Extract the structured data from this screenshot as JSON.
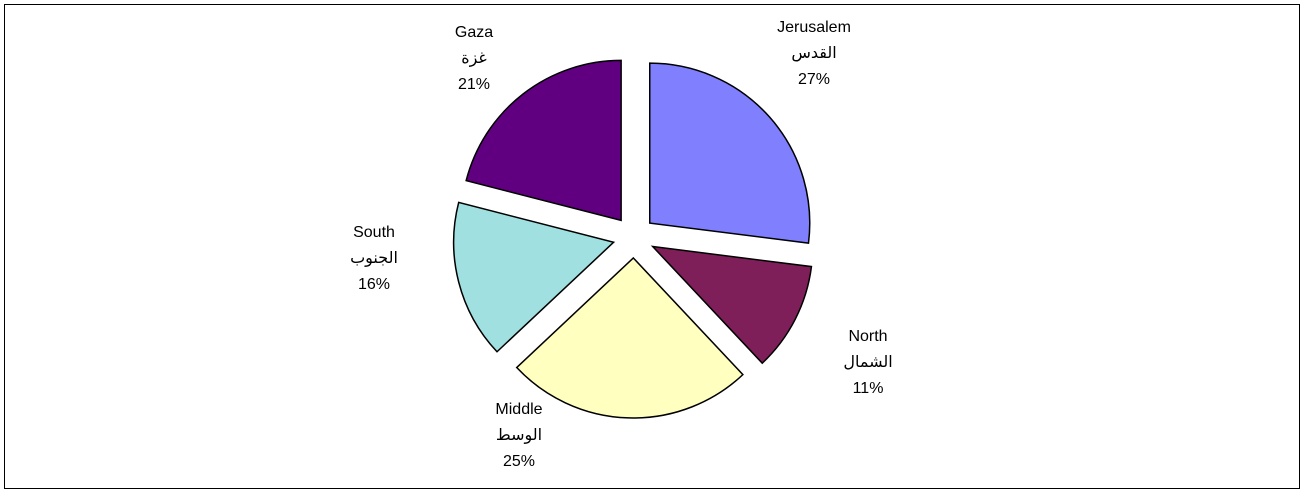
{
  "chart_data": {
    "type": "pie",
    "slices": [
      {
        "name": "Jerusalem",
        "name_ar": "القدس",
        "value": 27,
        "value_label": "27%",
        "color": "#8080FF"
      },
      {
        "name": "North",
        "name_ar": "الشمال",
        "value": 11,
        "value_label": "11%",
        "color": "#7F1F5A"
      },
      {
        "name": "Middle",
        "name_ar": "الوسط",
        "value": 25,
        "value_label": "25%",
        "color": "#FFFFC0"
      },
      {
        "name": "South",
        "name_ar": "الجنوب",
        "value": 16,
        "value_label": "16%",
        "color": "#A0E0E0"
      },
      {
        "name": "Gaza",
        "name_ar": "غزة",
        "value": 21,
        "value_label": "21%",
        "color": "#600080"
      }
    ],
    "exploded": true,
    "legend": "none"
  }
}
